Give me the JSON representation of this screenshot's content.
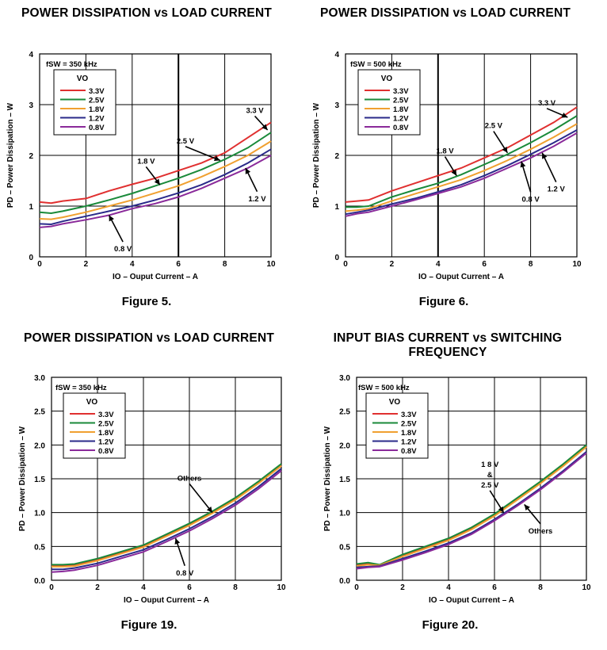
{
  "chart_data": [
    {
      "type": "line",
      "title": "POWER DISSIPATION vs LOAD CURRENT",
      "xlabel": "IO – Ouput Current – A",
      "ylabel": "PD – Power Dissipation – W",
      "xlim": [
        0,
        10
      ],
      "ylim": [
        0,
        4
      ],
      "xticks": [
        0,
        2,
        4,
        6,
        8,
        10
      ],
      "yticks": [
        0,
        1,
        2,
        3,
        4
      ],
      "fsw": "fSW = 350 kHz",
      "legend_title": "VO",
      "figure": "Figure 5.",
      "x": [
        0,
        0.5,
        1,
        2,
        3,
        4,
        5,
        6,
        7,
        8,
        9,
        10
      ],
      "series": [
        {
          "name": "3.3V",
          "color": "#e03030",
          "values": [
            1.08,
            1.06,
            1.1,
            1.15,
            1.3,
            1.43,
            1.55,
            1.7,
            1.85,
            2.05,
            2.35,
            2.65
          ]
        },
        {
          "name": "2.5V",
          "color": "#1a8a3a",
          "values": [
            0.88,
            0.86,
            0.9,
            1.0,
            1.12,
            1.25,
            1.4,
            1.55,
            1.72,
            1.92,
            2.15,
            2.45
          ]
        },
        {
          "name": "1.8V",
          "color": "#f0a030",
          "values": [
            0.75,
            0.74,
            0.78,
            0.88,
            1.0,
            1.12,
            1.26,
            1.4,
            1.58,
            1.78,
            2.0,
            2.28
          ]
        },
        {
          "name": "1.2V",
          "color": "#2a2a8a",
          "values": [
            0.65,
            0.64,
            0.7,
            0.8,
            0.9,
            1.0,
            1.12,
            1.26,
            1.42,
            1.62,
            1.85,
            2.12
          ]
        },
        {
          "name": "0.8V",
          "color": "#8a2a9a",
          "values": [
            0.58,
            0.6,
            0.65,
            0.73,
            0.82,
            0.95,
            1.05,
            1.18,
            1.35,
            1.55,
            1.75,
            2.0
          ]
        }
      ],
      "annotations": [
        {
          "text": "3.3 V",
          "x": 9.3,
          "y": 2.9
        },
        {
          "text": "2.5 V",
          "x": 6.3,
          "y": 2.3
        },
        {
          "text": "1.8 V",
          "x": 4.6,
          "y": 1.9
        },
        {
          "text": "1.2 V",
          "x": 9.4,
          "y": 1.16
        },
        {
          "text": "0.8 V",
          "x": 3.6,
          "y": 0.17
        }
      ]
    },
    {
      "type": "line",
      "title": "POWER DISSIPATION vs LOAD CURRENT",
      "xlabel": "IO – Ouput Current – A",
      "ylabel": "PD – Power Dissipation – W",
      "xlim": [
        0,
        10
      ],
      "ylim": [
        0,
        4
      ],
      "xticks": [
        0,
        2,
        4,
        6,
        8,
        10
      ],
      "yticks": [
        0,
        1,
        2,
        3,
        4
      ],
      "fsw": "fSW = 500 kHz",
      "legend_title": "VO",
      "figure": "Figure 6.",
      "x": [
        0,
        0.5,
        1,
        2,
        3,
        4,
        5,
        6,
        7,
        8,
        9,
        10
      ],
      "series": [
        {
          "name": "3.3V",
          "color": "#e03030",
          "values": [
            1.08,
            1.1,
            1.12,
            1.3,
            1.45,
            1.6,
            1.75,
            1.95,
            2.15,
            2.4,
            2.65,
            2.95
          ]
        },
        {
          "name": "2.5V",
          "color": "#1a8a3a",
          "values": [
            0.98,
            0.98,
            1.0,
            1.18,
            1.32,
            1.45,
            1.62,
            1.82,
            2.02,
            2.25,
            2.5,
            2.78
          ]
        },
        {
          "name": "1.8V",
          "color": "#f0a030",
          "values": [
            0.9,
            0.92,
            0.95,
            1.1,
            1.24,
            1.38,
            1.52,
            1.7,
            1.9,
            2.12,
            2.36,
            2.62
          ]
        },
        {
          "name": "1.2V",
          "color": "#2a2a8a",
          "values": [
            0.84,
            0.88,
            0.92,
            1.04,
            1.15,
            1.28,
            1.42,
            1.6,
            1.8,
            2.02,
            2.25,
            2.5
          ]
        },
        {
          "name": "0.8V",
          "color": "#8a2a9a",
          "values": [
            0.8,
            0.85,
            0.88,
            1.0,
            1.12,
            1.25,
            1.38,
            1.55,
            1.75,
            1.95,
            2.18,
            2.44
          ]
        }
      ],
      "annotations": [
        {
          "text": "3.3 V",
          "x": 8.7,
          "y": 3.05
        },
        {
          "text": "2.5 V",
          "x": 6.4,
          "y": 2.6
        },
        {
          "text": "1.8 V",
          "x": 4.3,
          "y": 2.1
        },
        {
          "text": "1.2 V",
          "x": 9.1,
          "y": 1.35
        },
        {
          "text": "0.8 V",
          "x": 8.0,
          "y": 1.15
        }
      ]
    },
    {
      "type": "line",
      "title": "POWER DISSIPATION vs LOAD CURRENT",
      "xlabel": "IO – Ouput Current – A",
      "ylabel": "PD – Power Dissipation – W",
      "xlim": [
        0,
        10
      ],
      "ylim": [
        0,
        3
      ],
      "xticks": [
        0,
        2,
        4,
        6,
        8,
        10
      ],
      "yticks": [
        0,
        0.5,
        1.0,
        1.5,
        2.0,
        2.5,
        3.0
      ],
      "fsw": "fSW = 350 kHz",
      "legend_title": "VO",
      "figure": "Figure 19.",
      "x": [
        0,
        0.5,
        1,
        2,
        3,
        4,
        5,
        6,
        7,
        8,
        9,
        10
      ],
      "series": [
        {
          "name": "3.3V",
          "color": "#e03030",
          "values": [
            0.22,
            0.22,
            0.23,
            0.3,
            0.4,
            0.5,
            0.66,
            0.82,
            1.0,
            1.2,
            1.44,
            1.7
          ]
        },
        {
          "name": "2.5V",
          "color": "#1a8a3a",
          "values": [
            0.23,
            0.23,
            0.24,
            0.32,
            0.42,
            0.52,
            0.68,
            0.84,
            1.02,
            1.22,
            1.46,
            1.72
          ]
        },
        {
          "name": "1.8V",
          "color": "#f0a030",
          "values": [
            0.2,
            0.2,
            0.21,
            0.29,
            0.39,
            0.49,
            0.65,
            0.81,
            0.99,
            1.19,
            1.43,
            1.69
          ]
        },
        {
          "name": "1.2V",
          "color": "#2a2a8a",
          "values": [
            0.16,
            0.16,
            0.18,
            0.25,
            0.35,
            0.45,
            0.6,
            0.76,
            0.94,
            1.14,
            1.38,
            1.65
          ]
        },
        {
          "name": "0.8V",
          "color": "#8a2a9a",
          "values": [
            0.12,
            0.13,
            0.15,
            0.22,
            0.32,
            0.42,
            0.57,
            0.73,
            0.91,
            1.11,
            1.35,
            1.62
          ]
        }
      ],
      "annotations": [
        {
          "text": "Others",
          "x": 6.0,
          "y": 1.52
        },
        {
          "text": "0.8 V",
          "x": 5.8,
          "y": 0.12
        }
      ]
    },
    {
      "type": "line",
      "title": "INPUT BIAS CURRENT vs SWITCHING FREQUENCY",
      "xlabel": "IO – Ouput Current – A",
      "ylabel": "PD – Power Dissipation – W",
      "xlim": [
        0,
        10
      ],
      "ylim": [
        0,
        3
      ],
      "xticks": [
        0,
        2,
        4,
        6,
        8,
        10
      ],
      "yticks": [
        0,
        0.5,
        1.0,
        1.5,
        2.0,
        2.5,
        3.0
      ],
      "fsw": "fSW = 500 kHz",
      "legend_title": "VO",
      "figure": "Figure 20.",
      "x": [
        0,
        0.5,
        1,
        2,
        3,
        4,
        5,
        6,
        7,
        8,
        9,
        10
      ],
      "series": [
        {
          "name": "3.3V",
          "color": "#e03030",
          "values": [
            0.22,
            0.24,
            0.22,
            0.36,
            0.48,
            0.6,
            0.76,
            0.96,
            1.2,
            1.44,
            1.7,
            1.98
          ]
        },
        {
          "name": "2.5V",
          "color": "#1a8a3a",
          "values": [
            0.24,
            0.26,
            0.23,
            0.38,
            0.5,
            0.62,
            0.78,
            0.98,
            1.22,
            1.46,
            1.72,
            2.0
          ]
        },
        {
          "name": "1.8V",
          "color": "#f0a030",
          "values": [
            0.21,
            0.23,
            0.22,
            0.35,
            0.47,
            0.59,
            0.75,
            0.95,
            1.19,
            1.43,
            1.69,
            1.97
          ]
        },
        {
          "name": "1.2V",
          "color": "#2a2a8a",
          "values": [
            0.19,
            0.2,
            0.21,
            0.32,
            0.43,
            0.55,
            0.7,
            0.9,
            1.12,
            1.36,
            1.62,
            1.9
          ]
        },
        {
          "name": "0.8V",
          "color": "#8a2a9a",
          "values": [
            0.17,
            0.19,
            0.2,
            0.3,
            0.41,
            0.53,
            0.68,
            0.88,
            1.1,
            1.34,
            1.6,
            1.88
          ]
        }
      ],
      "annotations": [
        {
          "text": "1 8 V",
          "x": 5.8,
          "y": 1.72
        },
        {
          "text": "&",
          "x": 5.8,
          "y": 1.57
        },
        {
          "text": "2.5 V",
          "x": 5.8,
          "y": 1.42
        },
        {
          "text": "Others",
          "x": 8.0,
          "y": 0.74
        }
      ]
    }
  ]
}
